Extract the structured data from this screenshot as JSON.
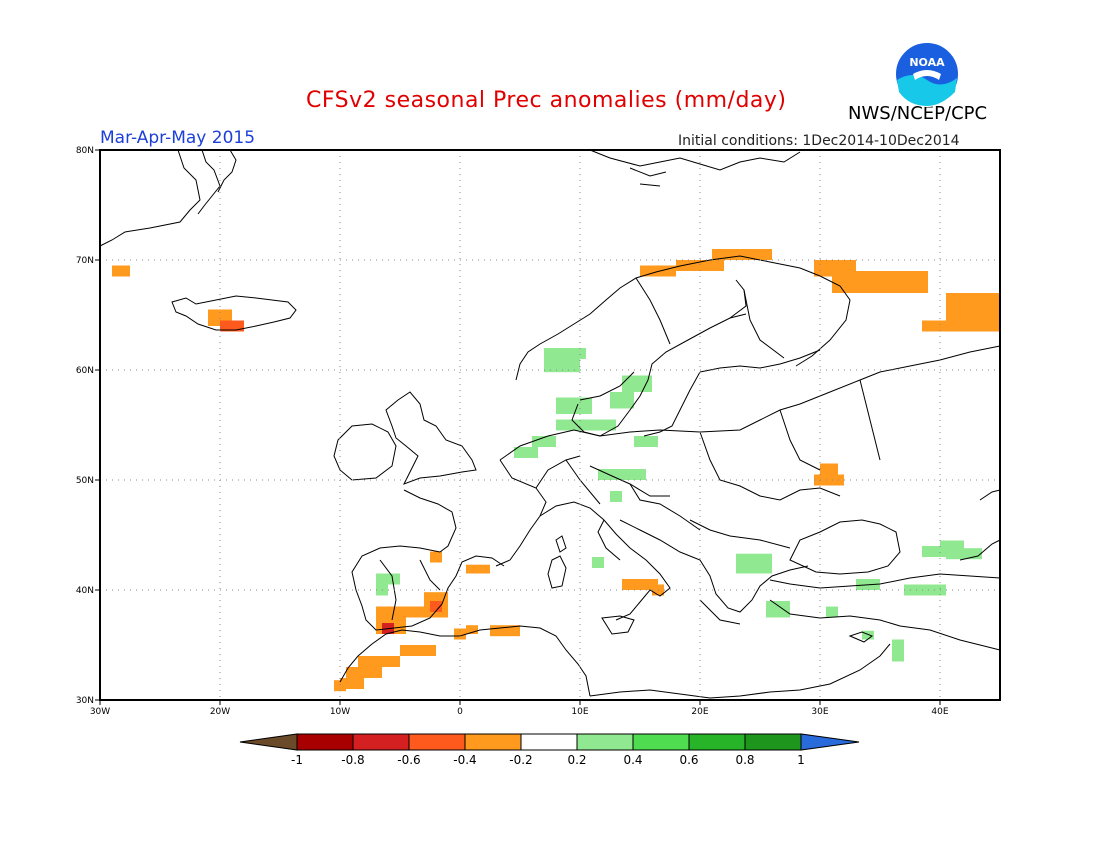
{
  "title": "CFSv2 seasonal Prec anomalies (mm/day)",
  "season": "Mar-Apr-May 2015",
  "initial_conditions": "Initial conditions: 1Dec2014-10Dec2014",
  "agency": "NWS/NCEP/CPC",
  "logo_text": "NOAA",
  "lon_labels": [
    "30W",
    "20W",
    "10W",
    "0",
    "10E",
    "20E",
    "30E",
    "40E"
  ],
  "lat_labels": [
    "80N",
    "70N",
    "60N",
    "50N",
    "40N",
    "30N"
  ],
  "colorbar": {
    "labels": [
      "-1",
      "-0.8",
      "-0.6",
      "-0.4",
      "-0.2",
      "0.2",
      "0.4",
      "0.6",
      "0.8",
      "1"
    ],
    "colors": [
      "#6b4a2a",
      "#a80000",
      "#d42020",
      "#ff5a1e",
      "#ff9a1e",
      "#ffffff",
      "#90e890",
      "#50dc50",
      "#28b428",
      "#1e961e",
      "#2a6bdc"
    ]
  },
  "anomaly_cells": [
    {
      "lon": -29,
      "lat": 68.5,
      "w": 1.5,
      "h": 1,
      "c": "#ff9a1e"
    },
    {
      "lon": -21,
      "lat": 64,
      "w": 2,
      "h": 1.5,
      "c": "#ff9a1e"
    },
    {
      "lon": -20,
      "lat": 63.5,
      "w": 2,
      "h": 1,
      "c": "#ff5a1e"
    },
    {
      "lon": 15,
      "lat": 68.5,
      "w": 3,
      "h": 1,
      "c": "#ff9a1e"
    },
    {
      "lon": 18,
      "lat": 69,
      "w": 4,
      "h": 1,
      "c": "#ff9a1e"
    },
    {
      "lon": 21,
      "lat": 70,
      "w": 5,
      "h": 1,
      "c": "#ff9a1e"
    },
    {
      "lon": 29.5,
      "lat": 68.5,
      "w": 3.5,
      "h": 1.5,
      "c": "#ff9a1e"
    },
    {
      "lon": 31,
      "lat": 67,
      "w": 8,
      "h": 2,
      "c": "#ff9a1e"
    },
    {
      "lon": 38.5,
      "lat": 63.5,
      "w": 6.5,
      "h": 1,
      "c": "#ff9a1e"
    },
    {
      "lon": 40.5,
      "lat": 64.5,
      "w": 4.5,
      "h": 2.5,
      "c": "#ff9a1e"
    },
    {
      "lon": 29.5,
      "lat": 49.5,
      "w": 2.5,
      "h": 1,
      "c": "#ff9a1e"
    },
    {
      "lon": 30,
      "lat": 50.5,
      "w": 1.5,
      "h": 1,
      "c": "#ff9a1e"
    },
    {
      "lon": -2.5,
      "lat": 42.5,
      "w": 1,
      "h": 1,
      "c": "#ff9a1e"
    },
    {
      "lon": 0.5,
      "lat": 41.5,
      "w": 2,
      "h": 0.8,
      "c": "#ff9a1e"
    },
    {
      "lon": -7,
      "lat": 37.5,
      "w": 6,
      "h": 1,
      "c": "#ff9a1e"
    },
    {
      "lon": -3,
      "lat": 38.5,
      "w": 2,
      "h": 1.3,
      "c": "#ff9a1e"
    },
    {
      "lon": -2.5,
      "lat": 38,
      "w": 1,
      "h": 1,
      "c": "#ff5a1e"
    },
    {
      "lon": -7,
      "lat": 36,
      "w": 2.5,
      "h": 1.5,
      "c": "#ff9a1e"
    },
    {
      "lon": -6.5,
      "lat": 36,
      "w": 1,
      "h": 1,
      "c": "#d42020"
    },
    {
      "lon": -5,
      "lat": 34,
      "w": 3,
      "h": 1,
      "c": "#ff9a1e"
    },
    {
      "lon": -8.5,
      "lat": 33,
      "w": 3.5,
      "h": 1,
      "c": "#ff9a1e"
    },
    {
      "lon": -9.5,
      "lat": 32,
      "w": 3,
      "h": 1,
      "c": "#ff9a1e"
    },
    {
      "lon": -10,
      "lat": 31,
      "w": 2,
      "h": 1,
      "c": "#ff9a1e"
    },
    {
      "lon": -10.5,
      "lat": 30.8,
      "w": 1,
      "h": 1,
      "c": "#ff9a1e"
    },
    {
      "lon": -0.5,
      "lat": 35.5,
      "w": 1,
      "h": 1,
      "c": "#ff9a1e"
    },
    {
      "lon": 0.5,
      "lat": 36,
      "w": 1,
      "h": 0.8,
      "c": "#ff9a1e"
    },
    {
      "lon": 2.5,
      "lat": 35.8,
      "w": 2.5,
      "h": 1,
      "c": "#ff9a1e"
    },
    {
      "lon": 13.5,
      "lat": 40,
      "w": 3,
      "h": 1,
      "c": "#ff9a1e"
    },
    {
      "lon": 16,
      "lat": 39.5,
      "w": 1,
      "h": 1,
      "c": "#ff9a1e"
    },
    {
      "lon": 7,
      "lat": 59.8,
      "w": 3,
      "h": 2.2,
      "c": "#90e890"
    },
    {
      "lon": 8.5,
      "lat": 61,
      "w": 2,
      "h": 1,
      "c": "#90e890"
    },
    {
      "lon": 8,
      "lat": 56,
      "w": 3,
      "h": 1.5,
      "c": "#90e890"
    },
    {
      "lon": 12.5,
      "lat": 56.5,
      "w": 2,
      "h": 1.5,
      "c": "#90e890"
    },
    {
      "lon": 13.5,
      "lat": 58,
      "w": 2.5,
      "h": 1.5,
      "c": "#90e890"
    },
    {
      "lon": 8,
      "lat": 54.5,
      "w": 5,
      "h": 1,
      "c": "#90e890"
    },
    {
      "lon": 6,
      "lat": 53,
      "w": 2,
      "h": 1,
      "c": "#90e890"
    },
    {
      "lon": 4.5,
      "lat": 52,
      "w": 2,
      "h": 1,
      "c": "#90e890"
    },
    {
      "lon": 14.5,
      "lat": 53,
      "w": 2,
      "h": 1,
      "c": "#90e890"
    },
    {
      "lon": 11.5,
      "lat": 50,
      "w": 4,
      "h": 1,
      "c": "#90e890"
    },
    {
      "lon": 12.5,
      "lat": 48,
      "w": 1,
      "h": 1,
      "c": "#90e890"
    },
    {
      "lon": 11,
      "lat": 42,
      "w": 1,
      "h": 1,
      "c": "#90e890"
    },
    {
      "lon": -7,
      "lat": 40.5,
      "w": 2,
      "h": 1,
      "c": "#90e890"
    },
    {
      "lon": -7,
      "lat": 39.5,
      "w": 1,
      "h": 1,
      "c": "#90e890"
    },
    {
      "lon": 23,
      "lat": 41.5,
      "w": 3,
      "h": 1.8,
      "c": "#90e890"
    },
    {
      "lon": 25.5,
      "lat": 37.5,
      "w": 2,
      "h": 1.5,
      "c": "#90e890"
    },
    {
      "lon": 30.5,
      "lat": 37.5,
      "w": 1,
      "h": 1,
      "c": "#90e890"
    },
    {
      "lon": 33,
      "lat": 40,
      "w": 2,
      "h": 1,
      "c": "#90e890"
    },
    {
      "lon": 37,
      "lat": 39.5,
      "w": 3.5,
      "h": 1,
      "c": "#90e890"
    },
    {
      "lon": 38.5,
      "lat": 43,
      "w": 2,
      "h": 1,
      "c": "#90e890"
    },
    {
      "lon": 40,
      "lat": 43.5,
      "w": 2,
      "h": 1,
      "c": "#90e890"
    },
    {
      "lon": 40.5,
      "lat": 42.8,
      "w": 3,
      "h": 1,
      "c": "#90e890"
    },
    {
      "lon": 33.5,
      "lat": 35.5,
      "w": 1,
      "h": 0.8,
      "c": "#90e890"
    },
    {
      "lon": 36,
      "lat": 33.5,
      "w": 1,
      "h": 2,
      "c": "#90e890"
    }
  ]
}
